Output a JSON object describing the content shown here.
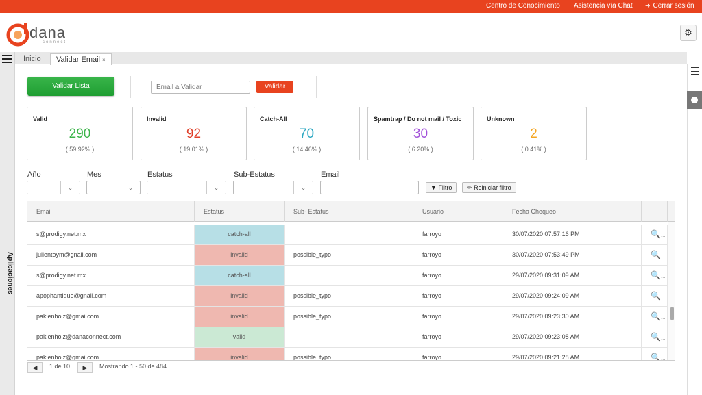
{
  "topbar": {
    "knowledge": "Centro de Conocimiento",
    "chat": "Asistencia vía Chat",
    "logout": "Cerrar sesión"
  },
  "logo": {
    "name": "dana",
    "sub": "connect"
  },
  "icons": {
    "settings": "gear-icon",
    "menu": "hamburger-icon",
    "logout": "logout-icon",
    "filter": "funnel-icon",
    "eraser": "eraser-icon",
    "search": "magnifier-icon"
  },
  "sidebar": {
    "label": "Aplicaciones"
  },
  "tabs": [
    {
      "label": "Inicio",
      "active": false
    },
    {
      "label": "Validar Email",
      "active": true,
      "close": "×"
    }
  ],
  "toolbar": {
    "validate_list": "Validar Lista",
    "email_placeholder": "Email a Validar",
    "validate": "Validar"
  },
  "stats": [
    {
      "title": "Valid",
      "value": "290",
      "pct": "( 59.92% )",
      "color": "#3cb44a"
    },
    {
      "title": "Invalid",
      "value": "92",
      "pct": "( 19.01% )",
      "color": "#e0402a"
    },
    {
      "title": "Catch-All",
      "value": "70",
      "pct": "( 14.46% )",
      "color": "#2ba7c2"
    },
    {
      "title": "Spamtrap / Do not mail / Toxic",
      "value": "30",
      "pct": "( 6.20% )",
      "color": "#a14fd9"
    },
    {
      "title": "Unknown",
      "value": "2",
      "pct": "( 0.41% )",
      "color": "#f5a623"
    }
  ],
  "filters": {
    "year": "Año",
    "month": "Mes",
    "status": "Estatus",
    "substatus": "Sub-Estatus",
    "email": "Email",
    "filter_btn": "Filtro",
    "reset_btn": "Reiniciar filtro"
  },
  "table": {
    "headers": [
      "Email",
      "Estatus",
      "Sub- Estatus",
      "Usuario",
      "Fecha Chequeo"
    ],
    "rows": [
      {
        "email": "s@prodigy.net.mx",
        "status": "catch-all",
        "substatus": "",
        "user": "farroyo",
        "date": "30/07/2020 07:57:16 PM"
      },
      {
        "email": "julientoym@gnail.com",
        "status": "invalid",
        "substatus": "possible_typo",
        "user": "farroyo",
        "date": "30/07/2020 07:53:49 PM"
      },
      {
        "email": "s@prodigy.net.mx",
        "status": "catch-all",
        "substatus": "",
        "user": "farroyo",
        "date": "29/07/2020 09:31:09 AM"
      },
      {
        "email": "apophantique@gnail.com",
        "status": "invalid",
        "substatus": "possible_typo",
        "user": "farroyo",
        "date": "29/07/2020 09:24:09 AM"
      },
      {
        "email": "pakienholz@gmai.com",
        "status": "invalid",
        "substatus": "possible_typo",
        "user": "farroyo",
        "date": "29/07/2020 09:23:30 AM"
      },
      {
        "email": "pakienholz@danaconnect.com",
        "status": "valid",
        "substatus": "",
        "user": "farroyo",
        "date": "29/07/2020 09:23:08 AM"
      },
      {
        "email": "pakienholz@gmai.com",
        "status": "invalid",
        "substatus": "possible_typo",
        "user": "farroyo",
        "date": "29/07/2020 09:21:28 AM"
      }
    ]
  },
  "pager": {
    "prev": "◀",
    "page": "1 de 10",
    "next": "▶",
    "showing": "Mostrando 1 - 50 de 484"
  }
}
